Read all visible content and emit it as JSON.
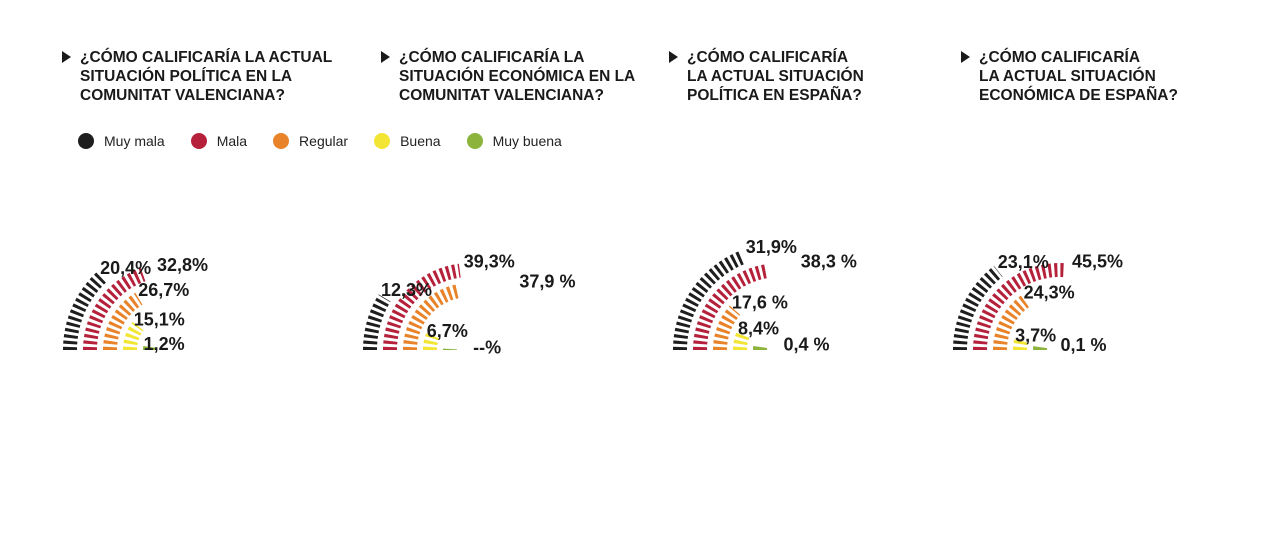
{
  "legend": [
    {
      "label": "Muy mala",
      "color": "#1e1e1e"
    },
    {
      "label": "Mala",
      "color": "#b5213a"
    },
    {
      "label": "Regular",
      "color": "#e8832a"
    },
    {
      "label": "Buena",
      "color": "#f2e534"
    },
    {
      "label": "Muy buena",
      "color": "#8cb43c"
    }
  ],
  "chart_data": [
    {
      "type": "radial-bar",
      "title": "¿Cómo calificaría la actual situación política en la Comunitat Valenciana?",
      "categories": [
        "Muy mala",
        "Mala",
        "Regular",
        "Buena",
        "Muy buena"
      ],
      "values": [
        20.4,
        32.8,
        26.7,
        15.1,
        1.2
      ],
      "labels": [
        "20,4%",
        "32,8%",
        "26,7%",
        "15,1%",
        "1,2%"
      ]
    },
    {
      "type": "radial-bar",
      "title": "¿Cómo calificaría la situación económica en la Comunitat Valenciana?",
      "categories": [
        "Muy mala",
        "Mala",
        "Regular",
        "Buena",
        "Muy buena"
      ],
      "values": [
        12.3,
        39.3,
        37.9,
        6.7,
        null
      ],
      "labels": [
        "12,3%",
        "39,3%",
        "37,9 %",
        "6,7%",
        "--%"
      ]
    },
    {
      "type": "radial-bar",
      "title": "¿Cómo calificaría la actual situación política en España?",
      "categories": [
        "Muy mala",
        "Mala",
        "Regular",
        "Buena",
        "Muy buena"
      ],
      "values": [
        31.9,
        38.3,
        17.6,
        8.4,
        0.4
      ],
      "labels": [
        "31,9%",
        "38,3 %",
        "17,6 %",
        "8,4%",
        "0,4 %"
      ]
    },
    {
      "type": "radial-bar",
      "title": "¿Cómo calificaría la actual situación económica de España?",
      "categories": [
        "Muy mala",
        "Mala",
        "Regular",
        "Buena",
        "Muy buena"
      ],
      "values": [
        23.1,
        45.5,
        24.3,
        3.7,
        0.1
      ],
      "labels": [
        "23,1%",
        "45,5%",
        "24,3%",
        "3,7%",
        "0,1 %"
      ]
    }
  ],
  "titles": [
    [
      "¿Cómo calificaría la actual",
      "situación política en la",
      "Comunitat Valenciana?"
    ],
    [
      "¿Cómo calificaría la",
      "situación económica en la",
      "Comunitat Valenciana?"
    ],
    [
      "¿Cómo calificaría",
      "la actual situación",
      "política en España?"
    ],
    [
      "¿Cómo calificaría",
      "la actual situación",
      "económica de España?"
    ]
  ]
}
